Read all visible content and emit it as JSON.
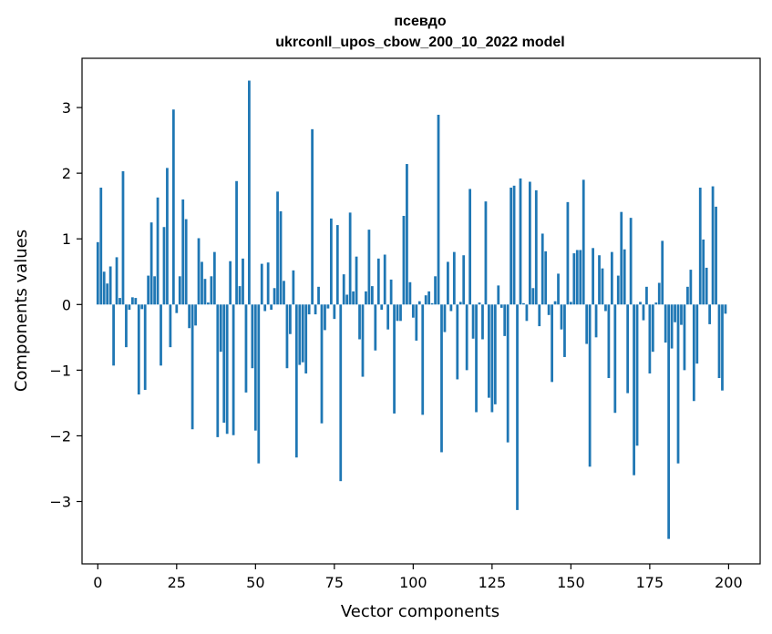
{
  "chart_data": {
    "type": "bar",
    "title_lines": [
      "псевдо",
      "ukrconll_upos_cbow_200_10_2022 model"
    ],
    "xlabel": "Vector components",
    "ylabel": "Components values",
    "xlim": [
      -5,
      210
    ],
    "ylim": [
      -3.95,
      3.75
    ],
    "xticks": [
      0,
      25,
      50,
      75,
      100,
      125,
      150,
      175,
      200
    ],
    "yticks": [
      -3,
      -2,
      -1,
      0,
      1,
      2,
      3
    ],
    "ytick_labels": [
      "−3",
      "−2",
      "−1",
      "0",
      "1",
      "2",
      "3"
    ],
    "grid": false,
    "bar_color": "#1f77b4",
    "values": [
      0.95,
      1.78,
      0.5,
      0.32,
      0.58,
      -0.93,
      0.72,
      0.1,
      2.03,
      -0.65,
      -0.08,
      0.11,
      0.1,
      -1.37,
      -0.07,
      -1.3,
      0.44,
      1.25,
      0.43,
      1.63,
      -0.93,
      1.18,
      2.08,
      -0.65,
      2.97,
      -0.13,
      0.43,
      1.6,
      1.3,
      -0.36,
      -1.9,
      -0.32,
      1.01,
      0.65,
      0.39,
      0.03,
      0.43,
      0.8,
      -2.02,
      -0.72,
      -1.8,
      -1.97,
      0.66,
      -1.99,
      1.88,
      0.28,
      0.7,
      -1.34,
      3.41,
      -0.97,
      -1.92,
      -2.42,
      0.62,
      -0.1,
      0.64,
      -0.08,
      0.25,
      1.72,
      1.42,
      0.36,
      -0.97,
      -0.45,
      0.52,
      -2.33,
      -0.92,
      -0.88,
      -1.05,
      -0.15,
      2.67,
      -0.15,
      0.27,
      -1.81,
      -0.39,
      -0.06,
      1.31,
      -0.22,
      1.21,
      -2.69,
      0.46,
      0.15,
      1.4,
      0.2,
      0.73,
      -0.53,
      -1.1,
      0.2,
      1.14,
      0.28,
      -0.7,
      0.7,
      -0.08,
      0.76,
      -0.38,
      0.38,
      -1.66,
      -0.25,
      -0.25,
      1.35,
      2.14,
      0.34,
      -0.2,
      -0.55,
      0.05,
      -1.68,
      0.14,
      0.2,
      0.02,
      0.43,
      2.89,
      -2.25,
      -0.42,
      0.65,
      -0.1,
      0.8,
      -1.14,
      0.04,
      0.75,
      -1.0,
      1.76,
      -0.52,
      -1.64,
      0.03,
      -0.53,
      1.57,
      -1.42,
      -1.64,
      -1.52,
      0.29,
      -0.05,
      -0.48,
      -2.1,
      1.78,
      1.81,
      -3.13,
      1.92,
      0.02,
      -0.25,
      1.87,
      0.25,
      1.74,
      -0.33,
      1.08,
      0.81,
      -0.16,
      -1.18,
      0.05,
      0.47,
      -0.38,
      -0.8,
      1.56,
      0.04,
      0.78,
      0.83,
      0.83,
      1.9,
      -0.6,
      -2.47,
      0.86,
      -0.5,
      0.75,
      0.55,
      -0.1,
      -1.12,
      0.8,
      -1.65,
      0.44,
      1.41,
      0.84,
      -1.35,
      1.32,
      -2.6,
      -2.15,
      0.04,
      -0.24,
      0.27,
      -1.05,
      -0.72,
      0.03,
      0.33,
      0.97,
      -0.58,
      -3.57,
      -0.67,
      -0.27,
      -2.42,
      -0.31,
      -1.0,
      0.27,
      0.53,
      -1.47,
      -0.9,
      1.78,
      0.99,
      0.56,
      -0.3,
      1.8,
      1.49,
      -1.12,
      -1.31,
      -0.14
    ]
  }
}
